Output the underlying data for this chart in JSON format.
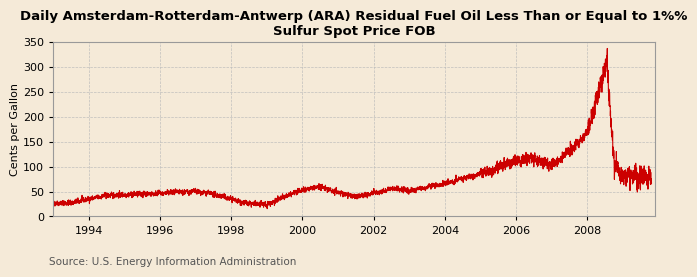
{
  "title_line1": "Daily Amsterdam-Rotterdam-Antwerp (ARA) Residual Fuel Oil Less Than or Equal to 1%%",
  "title_line2": "Sulfur Spot Price FOB",
  "ylabel": "Cents per Gallon",
  "source": "Source: U.S. Energy Information Administration",
  "line_color": "#cc0000",
  "background_color": "#f5ead8",
  "ylim": [
    0,
    350
  ],
  "yticks": [
    0,
    50,
    100,
    150,
    200,
    250,
    300,
    350
  ],
  "xlim": [
    1993.0,
    2009.9
  ],
  "xticks": [
    1994,
    1996,
    1998,
    2000,
    2002,
    2004,
    2006,
    2008
  ],
  "title_fontsize": 9.5,
  "ylabel_fontsize": 8,
  "source_fontsize": 7.5,
  "tick_fontsize": 8,
  "grid_color": "#bbbbbb",
  "line_width": 0.8
}
